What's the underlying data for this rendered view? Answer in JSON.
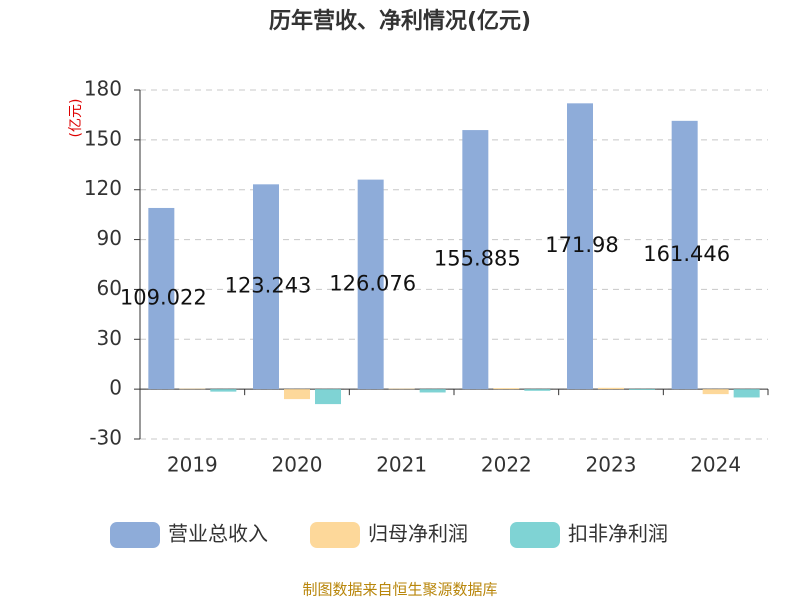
{
  "chart_data": {
    "type": "bar",
    "title": "历年营收、净利情况(亿元)",
    "y_label": "(亿元)",
    "categories": [
      "2019",
      "2020",
      "2021",
      "2022",
      "2023",
      "2024"
    ],
    "series": [
      {
        "name": "营业总收入",
        "color": "#8eacd9",
        "values": [
          109.022,
          123.243,
          126.076,
          155.885,
          171.98,
          161.446
        ],
        "show_labels": true
      },
      {
        "name": "归母净利润",
        "color": "#fdd89a",
        "values": [
          0.3,
          -6,
          0.3,
          0.6,
          0.8,
          -3
        ],
        "show_labels": false
      },
      {
        "name": "扣非净利润",
        "color": "#7fd3d4",
        "values": [
          -1.5,
          -9,
          -2,
          -1,
          -0.5,
          -5
        ],
        "show_labels": false
      }
    ],
    "ylim": [
      -30,
      180
    ],
    "yticks": [
      -30,
      0,
      30,
      60,
      90,
      120,
      150,
      180
    ],
    "grid": true,
    "source": "制图数据来自恒生聚源数据库"
  }
}
